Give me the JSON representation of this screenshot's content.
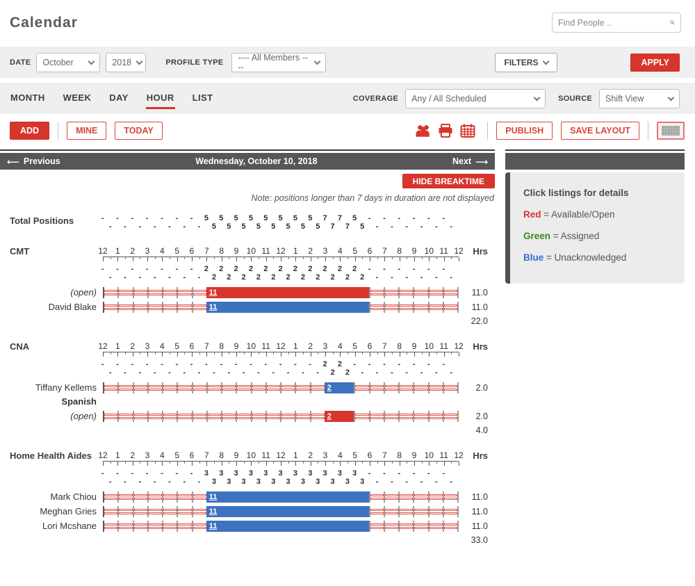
{
  "app": {
    "title": "Calendar"
  },
  "search": {
    "placeholder": "Find People ..",
    "icon": "magnifier"
  },
  "colors": {
    "open": "#d8352c",
    "assigned": "#3c861c",
    "unack": "#3d72c1",
    "accent_red": "#d8352c",
    "navbar_gray": "#57575a",
    "legend_blue": "#2e6fd0"
  },
  "filter_bar": {
    "date_label": "DATE",
    "month_value": "October",
    "year_value": "2018",
    "profile_type_label": "PROFILE TYPE",
    "profile_type_value": "---- All Members ----",
    "filters_label": "FILTERS",
    "apply_label": "APPLY"
  },
  "view_bar": {
    "tabs": [
      {
        "label": "MONTH",
        "active": false
      },
      {
        "label": "WEEK",
        "active": false
      },
      {
        "label": "DAY",
        "active": false
      },
      {
        "label": "HOUR",
        "active": true
      },
      {
        "label": "LIST",
        "active": false
      }
    ],
    "coverage_label": "COVERAGE",
    "coverage_value": "Any / All Scheduled",
    "source_label": "SOURCE",
    "source_value": "Shift View"
  },
  "toolbar": {
    "add_label": "ADD",
    "mine_label": "MINE",
    "today_label": "TODAY",
    "icons": [
      "group-icon",
      "print-icon",
      "calendar-icon",
      "grid-layout-icon"
    ],
    "publish_label": "PUBLISH",
    "save_layout_label": "SAVE LAYOUT"
  },
  "nav": {
    "previous_label": "Previous",
    "date_title": "Wednesday, October 10, 2018",
    "next_label": "Next"
  },
  "legend": {
    "title": "Click listings for details",
    "items": [
      {
        "term": "Red",
        "desc": " = Available/Open",
        "color_key": "open"
      },
      {
        "term": "Green",
        "desc": " = Assigned",
        "color_key": "assigned"
      },
      {
        "term": "Blue",
        "desc": " = Unacknowledged",
        "color_key": "legend_blue"
      }
    ]
  },
  "schedule": {
    "hide_breaktime_label": "HIDE BREAKTIME",
    "note": "Note: positions longer than 7 days in duration are not displayed",
    "hrs_label": "Hrs",
    "hour_labels": [
      "12",
      "1",
      "2",
      "3",
      "4",
      "5",
      "6",
      "7",
      "8",
      "9",
      "10",
      "11",
      "12",
      "1",
      "2",
      "3",
      "4",
      "5",
      "6",
      "7",
      "8",
      "9",
      "10",
      "11",
      "12"
    ],
    "total_positions": {
      "label": "Total Positions",
      "counts_hour": [
        "-",
        "-",
        "-",
        "-",
        "-",
        "-",
        "-",
        "5",
        "5",
        "5",
        "5",
        "5",
        "5",
        "5",
        "5",
        "7",
        "7",
        "5",
        "-",
        "-",
        "-",
        "-",
        "-",
        "-"
      ],
      "counts_half": [
        "-",
        "-",
        "-",
        "-",
        "-",
        "-",
        "-",
        "5",
        "5",
        "5",
        "5",
        "5",
        "5",
        "5",
        "5",
        "7",
        "7",
        "5",
        "-",
        "-",
        "-",
        "-",
        "-",
        "-"
      ]
    },
    "sections": [
      {
        "name": "CMT",
        "counts_hour": [
          "-",
          "-",
          "-",
          "-",
          "-",
          "-",
          "-",
          "2",
          "2",
          "2",
          "2",
          "2",
          "2",
          "2",
          "2",
          "2",
          "2",
          "2",
          "-",
          "-",
          "-",
          "-",
          "-",
          "-"
        ],
        "counts_half": [
          "-",
          "-",
          "-",
          "-",
          "-",
          "-",
          "-",
          "2",
          "2",
          "2",
          "2",
          "2",
          "2",
          "2",
          "2",
          "2",
          "2",
          "2",
          "-",
          "-",
          "-",
          "-",
          "-",
          "-"
        ],
        "rows": [
          {
            "name": "(open)",
            "open": true,
            "bar": {
              "text": "11",
              "start": 7,
              "length": 11,
              "type": "open"
            },
            "hrs": "11.0"
          },
          {
            "name": "David Blake",
            "open": false,
            "bar": {
              "text": "11",
              "start": 7,
              "length": 11,
              "type": "unack"
            },
            "hrs": "11.0"
          }
        ],
        "subtotal": "22.0"
      },
      {
        "name": "CNA",
        "counts_hour": [
          "-",
          "-",
          "-",
          "-",
          "-",
          "-",
          "-",
          "-",
          "-",
          "-",
          "-",
          "-",
          "-",
          "-",
          "-",
          "2",
          "2",
          "-",
          "-",
          "-",
          "-",
          "-",
          "-",
          "-"
        ],
        "counts_half": [
          "-",
          "-",
          "-",
          "-",
          "-",
          "-",
          "-",
          "-",
          "-",
          "-",
          "-",
          "-",
          "-",
          "-",
          "-",
          "2",
          "2",
          "-",
          "-",
          "-",
          "-",
          "-",
          "-",
          "-"
        ],
        "rows": [
          {
            "name": "Tiffany Kellems",
            "open": false,
            "tag": "Spanish",
            "bar": {
              "text": "2",
              "start": 15,
              "length": 2,
              "type": "unack"
            },
            "hrs": "2.0"
          },
          {
            "name": "(open)",
            "open": true,
            "bar": {
              "text": "2",
              "start": 15,
              "length": 2,
              "type": "open"
            },
            "hrs": "2.0"
          }
        ],
        "subtotal": "4.0"
      },
      {
        "name": "Home Health Aides",
        "counts_hour": [
          "-",
          "-",
          "-",
          "-",
          "-",
          "-",
          "-",
          "3",
          "3",
          "3",
          "3",
          "3",
          "3",
          "3",
          "3",
          "3",
          "3",
          "3",
          "-",
          "-",
          "-",
          "-",
          "-",
          "-"
        ],
        "counts_half": [
          "-",
          "-",
          "-",
          "-",
          "-",
          "-",
          "-",
          "3",
          "3",
          "3",
          "3",
          "3",
          "3",
          "3",
          "3",
          "3",
          "3",
          "3",
          "-",
          "-",
          "-",
          "-",
          "-",
          "-"
        ],
        "rows": [
          {
            "name": "Mark Chiou",
            "open": false,
            "bar": {
              "text": "11",
              "start": 7,
              "length": 11,
              "type": "unack"
            },
            "hrs": "11.0"
          },
          {
            "name": "Meghan Gries",
            "open": false,
            "bar": {
              "text": "11",
              "start": 7,
              "length": 11,
              "type": "unack"
            },
            "hrs": "11.0"
          },
          {
            "name": "Lori Mcshane",
            "open": false,
            "bar": {
              "text": "11",
              "start": 7,
              "length": 11,
              "type": "unack"
            },
            "hrs": "11.0"
          }
        ],
        "subtotal": "33.0"
      }
    ]
  }
}
